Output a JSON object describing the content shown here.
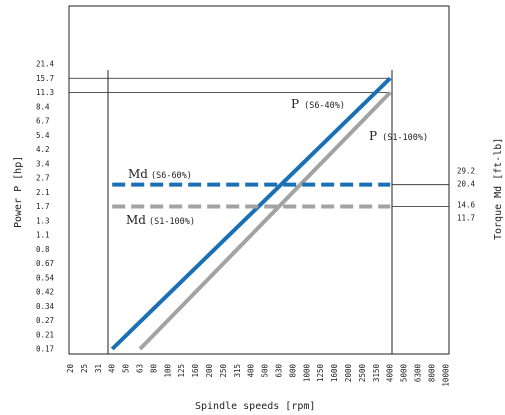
{
  "chart_data": {
    "type": "line",
    "xlabel": "Spindle speeds [rpm]",
    "ylabel_left": "Power P [hp]",
    "ylabel_right": "Torque Md [ft-lb]",
    "x_ticks": [
      "20",
      "25",
      "31",
      "40",
      "50",
      "63",
      "80",
      "100",
      "125",
      "160",
      "200",
      "250",
      "315",
      "400",
      "500",
      "630",
      "800",
      "1000",
      "1250",
      "1600",
      "2000",
      "2500",
      "3150",
      "4000",
      "5000",
      "6300",
      "8000",
      "10000"
    ],
    "y_ticks": [
      "0.17",
      "0.21",
      "0.27",
      "0.34",
      "0.42",
      "0.54",
      "0.67",
      "0.8",
      "1.1",
      "1.3",
      "1.7",
      "2.1",
      "2.7",
      "3.4",
      "4.2",
      "5.4",
      "6.7",
      "8.4",
      "11.3",
      "15.7",
      "21.4"
    ],
    "right_ticks": [
      "29.2",
      "20.4",
      "14.6",
      "11.7"
    ],
    "colors": {
      "s6": "#1a6fb5",
      "s1": "#a3a3a3"
    },
    "series": [
      {
        "name": "P (S6-40%)",
        "color": "#1a6fb5",
        "style": "solid",
        "x": [
          40,
          4000
        ],
        "y": [
          0.17,
          15.7
        ]
      },
      {
        "name": "P (S1-100%)",
        "color": "#a3a3a3",
        "style": "solid",
        "x": [
          63,
          4000
        ],
        "y": [
          0.17,
          11.3
        ]
      },
      {
        "name": "Md (S6-60%)",
        "color": "#1a6fb5",
        "style": "dashed",
        "x": [
          40,
          4000
        ],
        "y": [
          2.4,
          2.4
        ]
      },
      {
        "name": "Md (S1-100%)",
        "color": "#a3a3a3",
        "style": "dashed",
        "x": [
          40,
          4000
        ],
        "y": [
          1.7,
          1.7
        ]
      }
    ],
    "annotations": [
      {
        "big": "P",
        "small": "(S6-40%)"
      },
      {
        "big": "P",
        "small": "(S1-100%)"
      },
      {
        "big": "Md",
        "small": "(S6-60%)"
      },
      {
        "big": "Md",
        "small": "(S1-100%)"
      }
    ]
  }
}
